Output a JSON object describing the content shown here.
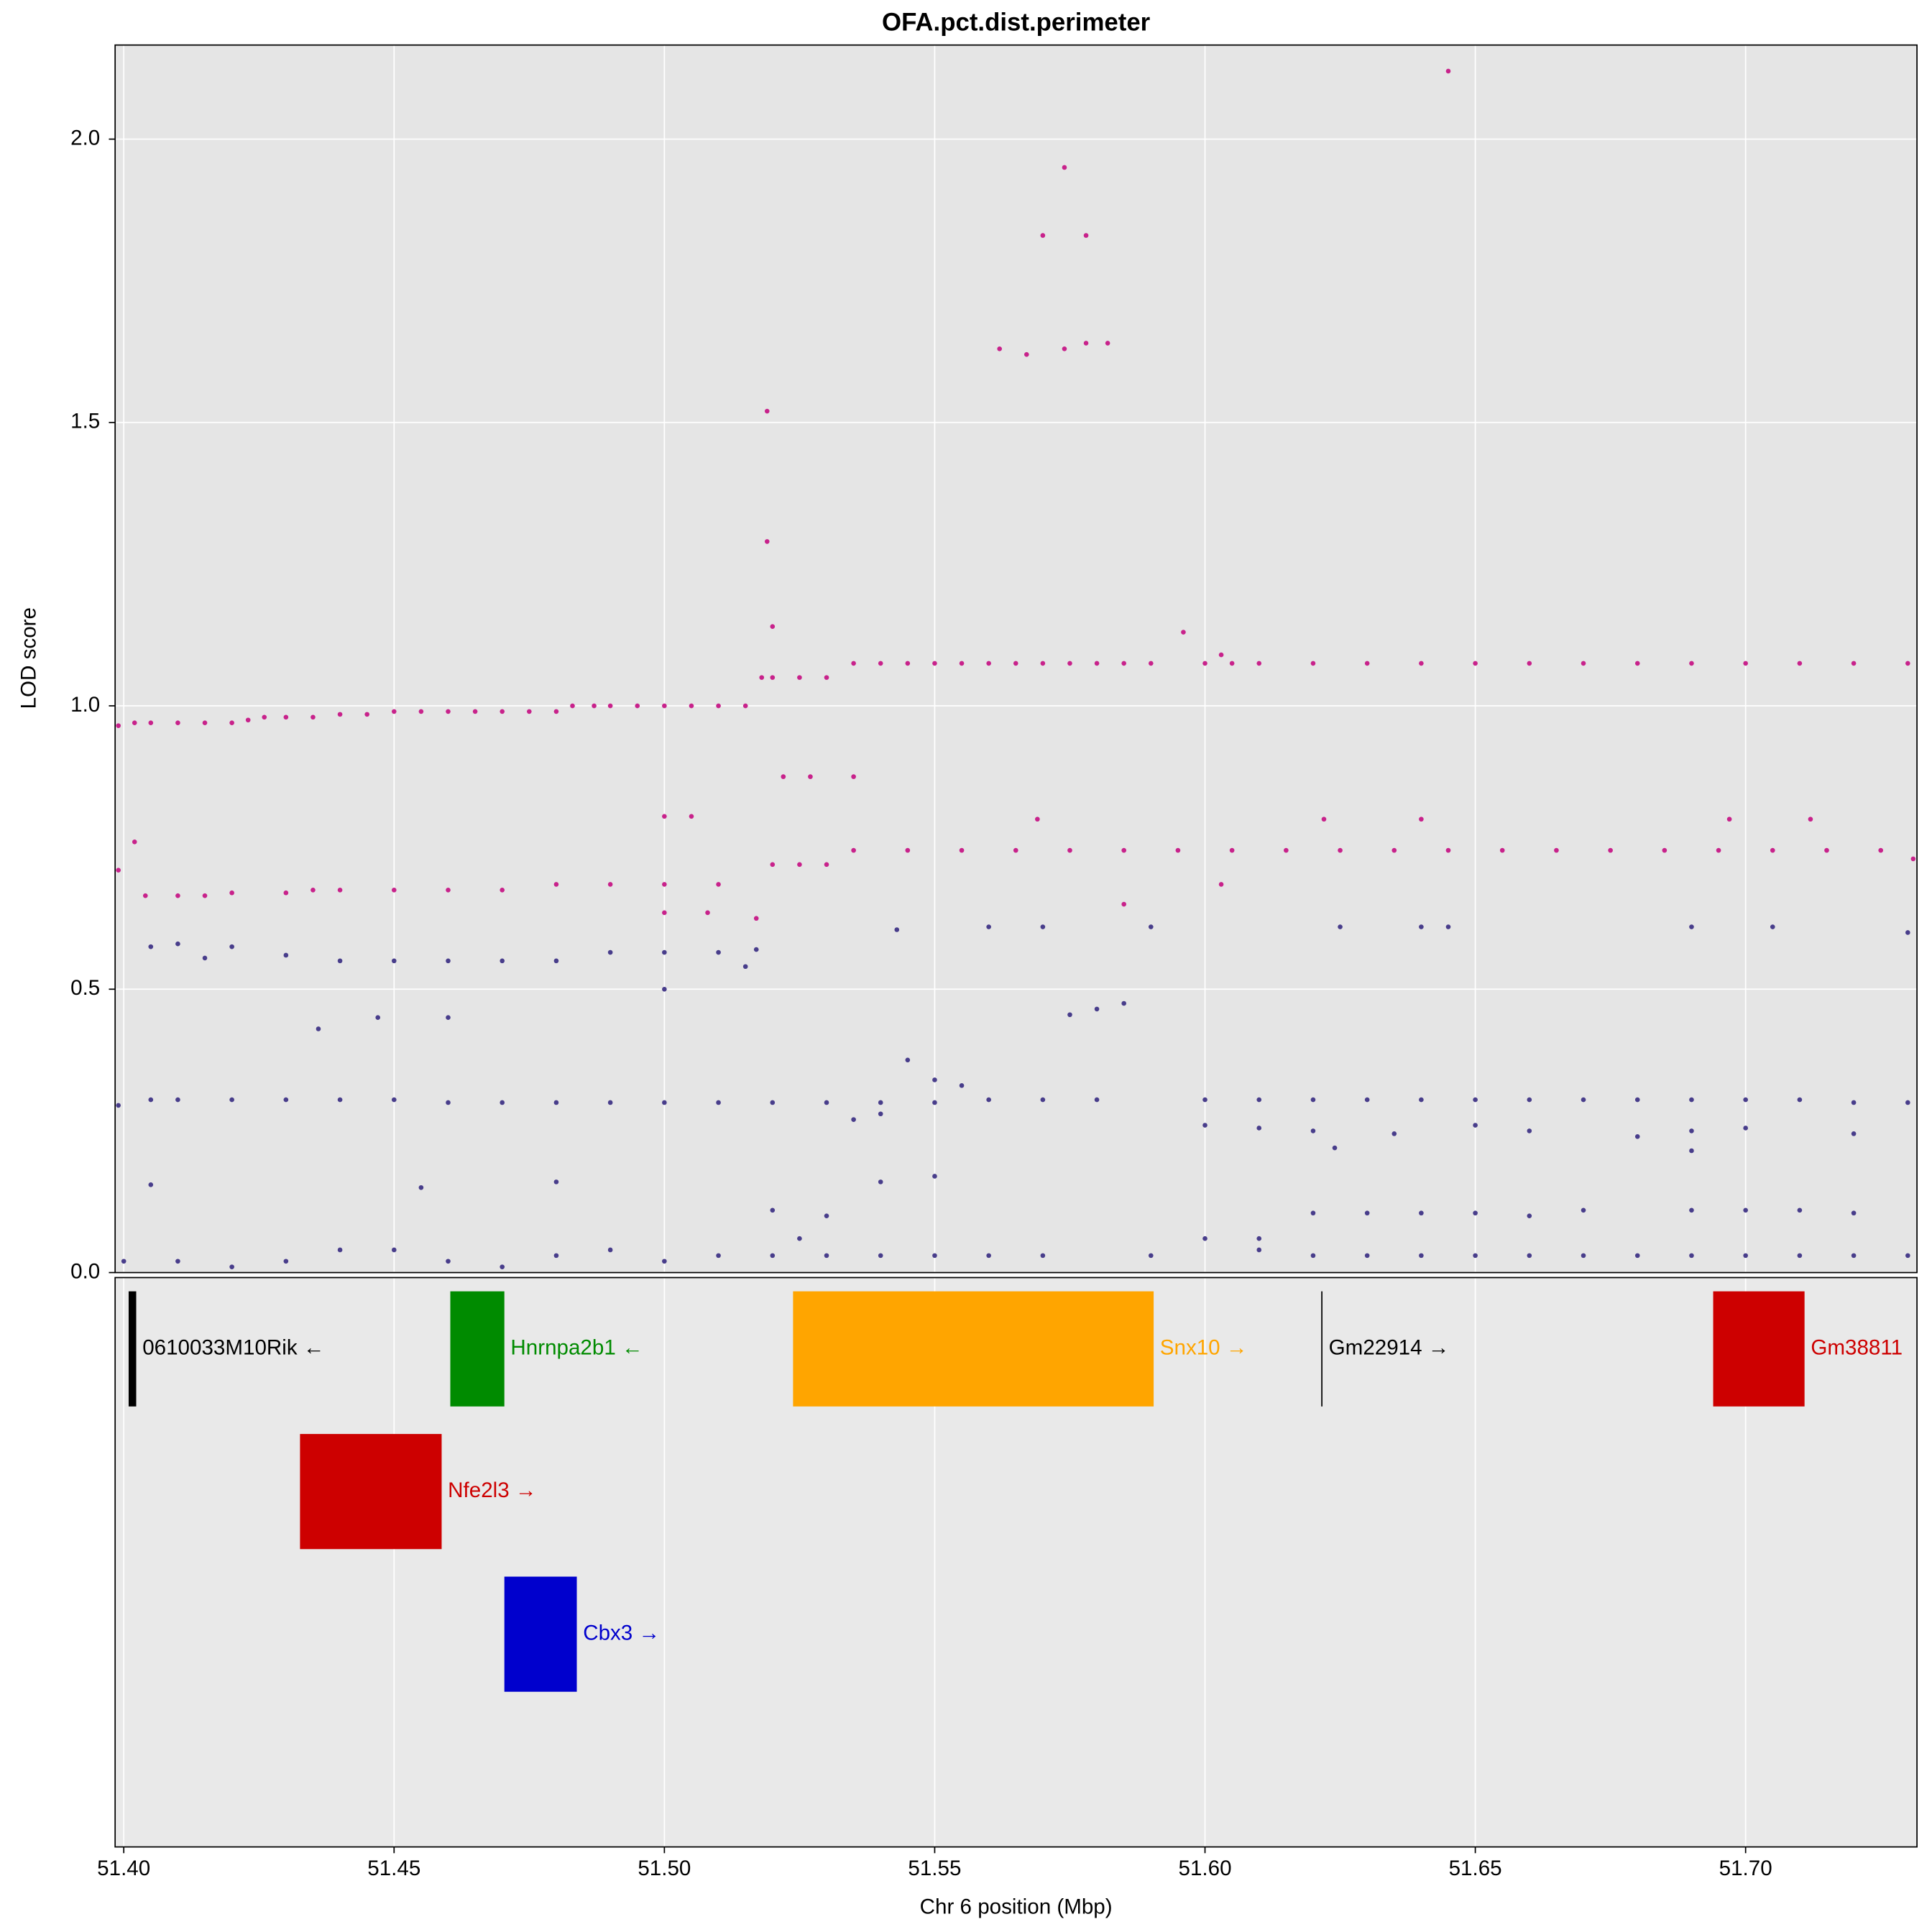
{
  "chart_data": {
    "type": "scatter",
    "title": "OFA.pct.dist.perimeter",
    "xlabel": "Chr 6 position (Mbp)",
    "ylabel": "LOD score",
    "xlim": [
      51.3984,
      51.7317
    ],
    "ylim": [
      0,
      2.166
    ],
    "xticks": [
      {
        "value": 51.4,
        "label": "51.40"
      },
      {
        "value": 51.45,
        "label": "51.45"
      },
      {
        "value": 51.5,
        "label": "51.50"
      },
      {
        "value": 51.55,
        "label": "51.55"
      },
      {
        "value": 51.6,
        "label": "51.60"
      },
      {
        "value": 51.65,
        "label": "51.65"
      },
      {
        "value": 51.7,
        "label": "51.70"
      }
    ],
    "yticks": [
      {
        "value": 0,
        "label": "0.0"
      },
      {
        "value": 0.5,
        "label": "0.5"
      },
      {
        "value": 1,
        "label": "1.0"
      },
      {
        "value": 1.5,
        "label": "1.5"
      },
      {
        "value": 2,
        "label": "2.0"
      }
    ],
    "grid": true,
    "series": [
      {
        "color": "#c8228b",
        "x": [
          51.399,
          51.402,
          51.405,
          51.41,
          51.415,
          51.42,
          51.423,
          51.426,
          51.43,
          51.435,
          51.44,
          51.445,
          51.45,
          51.455,
          51.46,
          51.465,
          51.47,
          51.475,
          51.48,
          51.483,
          51.487,
          51.49,
          51.495,
          51.5,
          51.505,
          51.51,
          51.515,
          51.518,
          51.52,
          51.525,
          51.53,
          51.535,
          51.54,
          51.545,
          51.55,
          51.555,
          51.56,
          51.565,
          51.57,
          51.575,
          51.58,
          51.585,
          51.59,
          51.6,
          51.605,
          51.61,
          51.62,
          51.63,
          51.64,
          51.65,
          51.66,
          51.67,
          51.68,
          51.69,
          51.7,
          51.71,
          51.72,
          51.73,
          51.519,
          51.519,
          51.52,
          51.562,
          51.567,
          51.574,
          51.578,
          51.582,
          51.57,
          51.578,
          51.574,
          51.645,
          51.596,
          51.603,
          51.399,
          51.404,
          51.41,
          51.415,
          51.42,
          51.43,
          51.435,
          51.44,
          51.45,
          51.46,
          51.47,
          51.48,
          51.49,
          51.5,
          51.51,
          51.517,
          51.52,
          51.525,
          51.53,
          51.535,
          51.545,
          51.555,
          51.565,
          51.575,
          51.585,
          51.595,
          51.605,
          51.615,
          51.625,
          51.635,
          51.645,
          51.655,
          51.665,
          51.675,
          51.685,
          51.695,
          51.705,
          51.715,
          51.725,
          51.731,
          51.402,
          51.5,
          51.505,
          51.522,
          51.527,
          51.535,
          51.569,
          51.622,
          51.64,
          51.697,
          51.712,
          51.5,
          51.508,
          51.585,
          51.603
        ],
        "values": [
          0.965,
          0.97,
          0.97,
          0.97,
          0.97,
          0.97,
          0.975,
          0.98,
          0.98,
          0.98,
          0.985,
          0.985,
          0.99,
          0.99,
          0.99,
          0.99,
          0.99,
          0.99,
          0.99,
          1.0,
          1.0,
          1.0,
          1.0,
          1.0,
          1.0,
          1.0,
          1.0,
          1.05,
          1.05,
          1.05,
          1.05,
          1.075,
          1.075,
          1.075,
          1.075,
          1.075,
          1.075,
          1.075,
          1.075,
          1.075,
          1.075,
          1.075,
          1.075,
          1.075,
          1.075,
          1.075,
          1.075,
          1.075,
          1.075,
          1.075,
          1.075,
          1.075,
          1.075,
          1.075,
          1.075,
          1.075,
          1.075,
          1.075,
          1.52,
          1.29,
          1.14,
          1.63,
          1.62,
          1.63,
          1.64,
          1.64,
          1.83,
          1.83,
          1.95,
          2.12,
          1.13,
          1.09,
          0.71,
          0.665,
          0.665,
          0.665,
          0.67,
          0.67,
          0.675,
          0.675,
          0.675,
          0.675,
          0.675,
          0.685,
          0.685,
          0.685,
          0.685,
          0.625,
          0.72,
          0.72,
          0.72,
          0.745,
          0.745,
          0.745,
          0.745,
          0.745,
          0.745,
          0.745,
          0.745,
          0.745,
          0.745,
          0.745,
          0.745,
          0.745,
          0.745,
          0.745,
          0.745,
          0.745,
          0.745,
          0.745,
          0.745,
          0.73,
          0.76,
          0.805,
          0.805,
          0.875,
          0.875,
          0.875,
          0.8,
          0.8,
          0.8,
          0.8,
          0.8,
          0.635,
          0.635,
          0.65,
          0.685
        ]
      },
      {
        "color": "#483d8b",
        "x": [
          51.399,
          51.405,
          51.41,
          51.42,
          51.43,
          51.44,
          51.45,
          51.46,
          51.47,
          51.48,
          51.49,
          51.5,
          51.51,
          51.52,
          51.53,
          51.54,
          51.55,
          51.56,
          51.57,
          51.58,
          51.6,
          51.61,
          51.62,
          51.63,
          51.64,
          51.65,
          51.66,
          51.67,
          51.68,
          51.69,
          51.7,
          51.71,
          51.72,
          51.73,
          51.405,
          51.41,
          51.415,
          51.42,
          51.43,
          51.44,
          51.45,
          51.46,
          51.47,
          51.48,
          51.49,
          51.5,
          51.51,
          51.515,
          51.517,
          51.436,
          51.447,
          51.46,
          51.5,
          51.543,
          51.56,
          51.57,
          51.575,
          51.58,
          51.585,
          51.59,
          51.625,
          51.64,
          51.645,
          51.69,
          51.705,
          51.73,
          51.6,
          51.61,
          51.62,
          51.635,
          51.65,
          51.66,
          51.68,
          51.69,
          51.7,
          51.72,
          51.624,
          51.69,
          51.545,
          51.55,
          51.555,
          51.54,
          51.535,
          51.62,
          51.63,
          51.64,
          51.65,
          51.66,
          51.67,
          51.69,
          51.7,
          51.71,
          51.72,
          51.52,
          51.53,
          51.54,
          51.55,
          51.525,
          51.6,
          51.61,
          51.405,
          51.455,
          51.48,
          51.4,
          51.41,
          51.42,
          51.43,
          51.44,
          51.45,
          51.46,
          51.47,
          51.48,
          51.49,
          51.5,
          51.51,
          51.52,
          51.53,
          51.54,
          51.55,
          51.56,
          51.57,
          51.59,
          51.61,
          51.62,
          51.63,
          51.64,
          51.65,
          51.66,
          51.67,
          51.68,
          51.69,
          51.7,
          51.71,
          51.72,
          51.73
        ],
        "values": [
          0.295,
          0.305,
          0.305,
          0.305,
          0.305,
          0.305,
          0.305,
          0.3,
          0.3,
          0.3,
          0.3,
          0.3,
          0.3,
          0.3,
          0.3,
          0.3,
          0.3,
          0.305,
          0.305,
          0.305,
          0.305,
          0.305,
          0.305,
          0.305,
          0.305,
          0.305,
          0.305,
          0.305,
          0.305,
          0.305,
          0.305,
          0.305,
          0.3,
          0.3,
          0.575,
          0.58,
          0.555,
          0.575,
          0.56,
          0.55,
          0.55,
          0.55,
          0.55,
          0.55,
          0.565,
          0.565,
          0.565,
          0.54,
          0.57,
          0.43,
          0.45,
          0.45,
          0.5,
          0.605,
          0.61,
          0.61,
          0.455,
          0.465,
          0.475,
          0.61,
          0.61,
          0.61,
          0.61,
          0.61,
          0.61,
          0.6,
          0.26,
          0.255,
          0.25,
          0.245,
          0.26,
          0.25,
          0.24,
          0.25,
          0.255,
          0.245,
          0.22,
          0.215,
          0.375,
          0.34,
          0.33,
          0.28,
          0.27,
          0.105,
          0.105,
          0.105,
          0.105,
          0.1,
          0.11,
          0.11,
          0.11,
          0.11,
          0.105,
          0.11,
          0.1,
          0.16,
          0.17,
          0.06,
          0.06,
          0.06,
          0.155,
          0.15,
          0.16,
          0.02,
          0.02,
          0.01,
          0.02,
          0.04,
          0.04,
          0.02,
          0.01,
          0.03,
          0.04,
          0.02,
          0.03,
          0.03,
          0.03,
          0.03,
          0.03,
          0.03,
          0.03,
          0.03,
          0.04,
          0.03,
          0.03,
          0.03,
          0.03,
          0.03,
          0.03,
          0.03,
          0.03,
          0.03,
          0.03,
          0.03,
          0.03
        ]
      }
    ],
    "genes": [
      {
        "label": "0610033M10Rik ←",
        "start": 51.4009,
        "end": 51.4023,
        "color": "#000000"
      },
      {
        "label": "Nfe2l3 →",
        "start": 51.4326,
        "end": 51.4588,
        "color": "#cd0000"
      },
      {
        "label": "Hnrnpa2b1 ←",
        "start": 51.4604,
        "end": 51.4704,
        "color": "#008b00"
      },
      {
        "label": "Cbx3 →",
        "start": 51.4704,
        "end": 51.4838,
        "color": "#0000cd"
      },
      {
        "label": "Snx10 →",
        "start": 51.5238,
        "end": 51.5905,
        "color": "#ffa500"
      },
      {
        "label": "Gm22914 →",
        "start": 51.6215,
        "end": 51.6217,
        "color": "#000000"
      },
      {
        "label": "Gm38811",
        "start": 51.694,
        "end": 51.7109,
        "color": "#cd0000"
      }
    ]
  }
}
